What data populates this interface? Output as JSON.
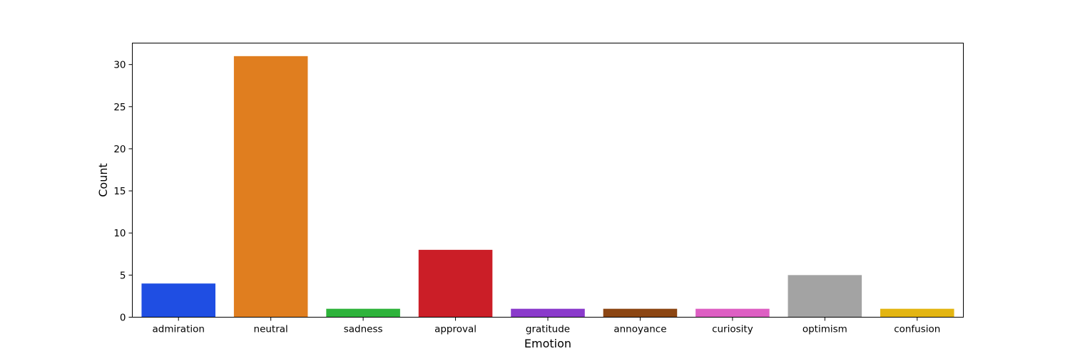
{
  "chart_data": {
    "type": "bar",
    "title": "",
    "xlabel": "Emotion",
    "ylabel": "Count",
    "categories": [
      "admiration",
      "neutral",
      "sadness",
      "approval",
      "gratitude",
      "annoyance",
      "curiosity",
      "optimism",
      "confusion"
    ],
    "values": [
      4,
      31,
      1,
      8,
      1,
      1,
      1,
      5,
      1
    ],
    "colors": [
      "#1f4ee3",
      "#e07e1f",
      "#2eb33b",
      "#cb1e27",
      "#8a3acb",
      "#8c4613",
      "#dd5fc3",
      "#a3a3a3",
      "#e3b512"
    ],
    "ylim": [
      0,
      32.55
    ],
    "yticks": [
      0,
      5,
      10,
      15,
      20,
      25,
      30
    ],
    "grid": false,
    "legend": "none"
  }
}
